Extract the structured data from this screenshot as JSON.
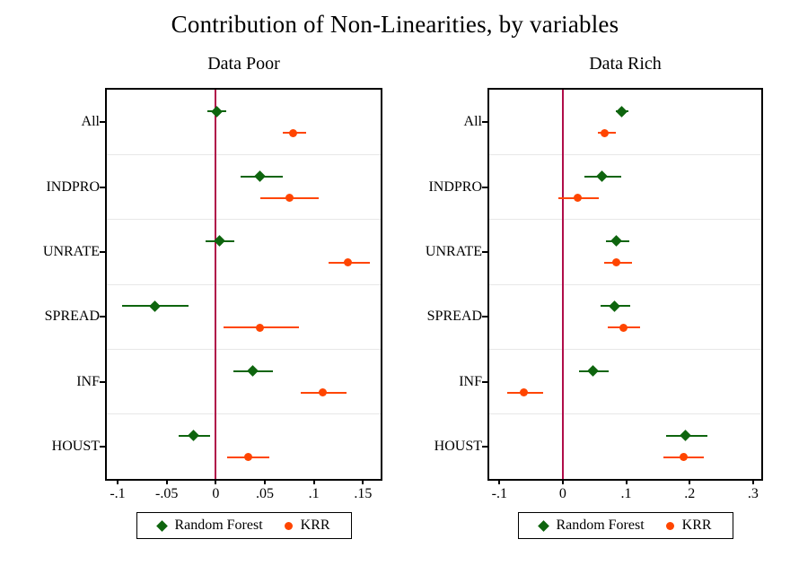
{
  "title": "Contribution of Non-Linearities, by variables",
  "colors": {
    "random_forest": "#0e650e",
    "krr": "#ff4500",
    "zero_line": "#b00d49",
    "gridline": "#e7e7e7",
    "axis": "#000000",
    "text": "#000000"
  },
  "chart_data": [
    {
      "type": "scatter",
      "subtype": "horizontal-dot-whisker",
      "title": "Data Poor",
      "categories": [
        "All",
        "INDPRO",
        "UNRATE",
        "SPREAD",
        "INF",
        "HOUST"
      ],
      "xlim": [
        -0.111,
        0.168
      ],
      "zero_line": 0,
      "grid": "horizontal-between-categories",
      "xticks": {
        "values": [
          -0.1,
          -0.05,
          0,
          0.05,
          0.1,
          0.15
        ],
        "labels": [
          "-.1",
          "-.05",
          "0",
          ".05",
          ".1",
          ".15"
        ]
      },
      "series": [
        {
          "name": "Random Forest",
          "marker": "diamond",
          "color": "#0e650e",
          "points": [
            {
              "category": "All",
              "value": 0.001,
              "lo": -0.009,
              "hi": 0.011
            },
            {
              "category": "INDPRO",
              "value": 0.045,
              "lo": 0.025,
              "hi": 0.068
            },
            {
              "category": "UNRATE",
              "value": 0.004,
              "lo": -0.01,
              "hi": 0.019
            },
            {
              "category": "SPREAD",
              "value": -0.062,
              "lo": -0.095,
              "hi": -0.028
            },
            {
              "category": "INF",
              "value": 0.038,
              "lo": 0.018,
              "hi": 0.058
            },
            {
              "category": "HOUST",
              "value": -0.023,
              "lo": -0.038,
              "hi": -0.006
            }
          ]
        },
        {
          "name": "KRR",
          "marker": "circle",
          "color": "#ff4500",
          "points": [
            {
              "category": "All",
              "value": 0.079,
              "lo": 0.068,
              "hi": 0.092
            },
            {
              "category": "INDPRO",
              "value": 0.075,
              "lo": 0.045,
              "hi": 0.105
            },
            {
              "category": "UNRATE",
              "value": 0.135,
              "lo": 0.115,
              "hi": 0.157
            },
            {
              "category": "SPREAD",
              "value": 0.045,
              "lo": 0.008,
              "hi": 0.085
            },
            {
              "category": "INF",
              "value": 0.109,
              "lo": 0.087,
              "hi": 0.133
            },
            {
              "category": "HOUST",
              "value": 0.033,
              "lo": 0.012,
              "hi": 0.055
            }
          ]
        }
      ]
    },
    {
      "type": "scatter",
      "subtype": "horizontal-dot-whisker",
      "title": "Data Rich",
      "categories": [
        "All",
        "INDPRO",
        "UNRATE",
        "SPREAD",
        "INF",
        "HOUST"
      ],
      "xlim": [
        -0.116,
        0.313
      ],
      "zero_line": 0,
      "grid": "horizontal-between-categories",
      "xticks": {
        "values": [
          -0.1,
          0,
          0.1,
          0.2,
          0.3
        ],
        "labels": [
          "-.1",
          "0",
          ".1",
          ".2",
          ".3"
        ]
      },
      "series": [
        {
          "name": "Random Forest",
          "marker": "diamond",
          "color": "#0e650e",
          "points": [
            {
              "category": "All",
              "value": 0.093,
              "lo": 0.083,
              "hi": 0.104
            },
            {
              "category": "INDPRO",
              "value": 0.061,
              "lo": 0.034,
              "hi": 0.092
            },
            {
              "category": "UNRATE",
              "value": 0.085,
              "lo": 0.068,
              "hi": 0.105
            },
            {
              "category": "SPREAD",
              "value": 0.082,
              "lo": 0.059,
              "hi": 0.107
            },
            {
              "category": "INF",
              "value": 0.048,
              "lo": 0.025,
              "hi": 0.072
            },
            {
              "category": "HOUST",
              "value": 0.194,
              "lo": 0.163,
              "hi": 0.228
            }
          ]
        },
        {
          "name": "KRR",
          "marker": "circle",
          "color": "#ff4500",
          "points": [
            {
              "category": "All",
              "value": 0.066,
              "lo": 0.055,
              "hi": 0.084
            },
            {
              "category": "INDPRO",
              "value": 0.023,
              "lo": -0.007,
              "hi": 0.057
            },
            {
              "category": "UNRATE",
              "value": 0.085,
              "lo": 0.065,
              "hi": 0.109
            },
            {
              "category": "SPREAD",
              "value": 0.095,
              "lo": 0.071,
              "hi": 0.122
            },
            {
              "category": "INF",
              "value": -0.062,
              "lo": -0.088,
              "hi": -0.031
            },
            {
              "category": "HOUST",
              "value": 0.191,
              "lo": 0.158,
              "hi": 0.223
            }
          ]
        }
      ]
    }
  ],
  "legend": {
    "items": [
      {
        "label": "Random Forest",
        "marker": "diamond-icon"
      },
      {
        "label": "KRR",
        "marker": "circle-icon"
      }
    ],
    "position": "below-each-panel"
  }
}
